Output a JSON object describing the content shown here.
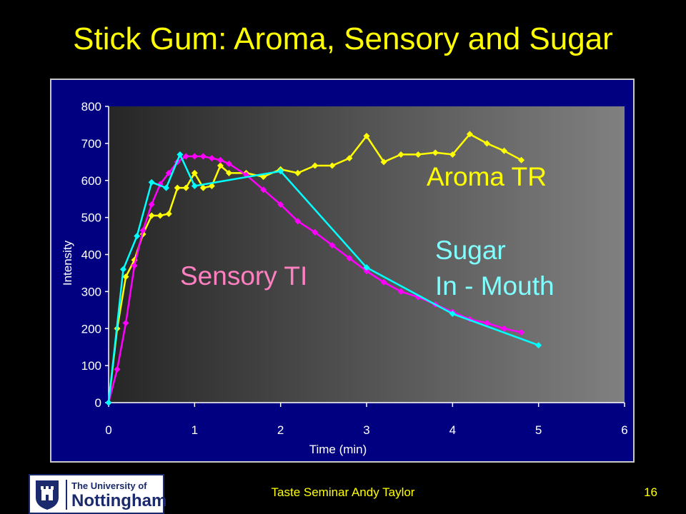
{
  "slide": {
    "title": "Stick Gum: Aroma, Sensory and Sugar",
    "footer": "Taste Seminar Andy Taylor",
    "page_number": "16",
    "logo": {
      "line1": "The University of",
      "line2": "Nottingham",
      "crest": "university-crest"
    }
  },
  "colors": {
    "background": "#000000",
    "title": "#FFFF00",
    "plot_frame": "#000080",
    "aroma": "#FFFF00",
    "sensory": "#FF00FF",
    "sugar": "#00FFFF",
    "sensory_label": "#FF80C0",
    "sugar_label": "#80FFFF"
  },
  "chart_data": {
    "type": "line",
    "title": "",
    "xlabel": "Time (min)",
    "ylabel": "Intensity",
    "xlim": [
      0,
      6
    ],
    "ylim": [
      0,
      800
    ],
    "xticks": [
      0,
      1,
      2,
      3,
      4,
      5,
      6
    ],
    "yticks": [
      0,
      100,
      200,
      300,
      400,
      500,
      600,
      700,
      800
    ],
    "grid": false,
    "legend": "none",
    "background": "gradient dark-to-light grey",
    "series": [
      {
        "name": "Aroma TR",
        "color": "#FFFF00",
        "marker": "diamond",
        "x": [
          0,
          0.1,
          0.2,
          0.3,
          0.4,
          0.5,
          0.6,
          0.7,
          0.8,
          0.9,
          1.0,
          1.1,
          1.2,
          1.3,
          1.4,
          1.6,
          1.8,
          2.0,
          2.2,
          2.4,
          2.6,
          2.8,
          3.0,
          3.2,
          3.4,
          3.6,
          3.8,
          4.0,
          4.2,
          4.4,
          4.6,
          4.8
        ],
        "y": [
          0,
          200,
          340,
          385,
          455,
          505,
          505,
          510,
          580,
          580,
          620,
          580,
          585,
          640,
          620,
          620,
          610,
          630,
          620,
          640,
          640,
          660,
          720,
          650,
          670,
          670,
          675,
          670,
          725,
          700,
          680,
          655
        ]
      },
      {
        "name": "Sensory TI",
        "color": "#FF00FF",
        "marker": "diamond",
        "x": [
          0,
          0.1,
          0.2,
          0.3,
          0.4,
          0.5,
          0.6,
          0.7,
          0.8,
          0.9,
          1.0,
          1.1,
          1.2,
          1.3,
          1.4,
          1.6,
          1.8,
          2.0,
          2.2,
          2.4,
          2.6,
          2.8,
          3.0,
          3.2,
          3.4,
          3.6,
          3.8,
          4.0,
          4.2,
          4.4,
          4.6,
          4.8
        ],
        "y": [
          0,
          90,
          215,
          370,
          465,
          535,
          590,
          620,
          650,
          665,
          665,
          665,
          660,
          655,
          645,
          615,
          575,
          535,
          490,
          460,
          425,
          390,
          355,
          325,
          300,
          285,
          265,
          245,
          225,
          215,
          200,
          190
        ]
      },
      {
        "name": "Sugar In - Mouth",
        "color": "#00FFFF",
        "marker": "diamond",
        "x": [
          0,
          0.17,
          0.33,
          0.5,
          0.67,
          0.83,
          1.0,
          2.0,
          3.0,
          4.0,
          5.0
        ],
        "y": [
          0,
          360,
          450,
          595,
          580,
          670,
          585,
          625,
          365,
          240,
          155
        ]
      }
    ],
    "annotations": [
      {
        "text": "Aroma TR",
        "color": "#FFFF00"
      },
      {
        "text": "Sensory TI",
        "color": "#FF80C0"
      },
      {
        "text": "Sugar",
        "color": "#80FFFF"
      },
      {
        "text": "In - Mouth",
        "color": "#80FFFF"
      }
    ]
  }
}
